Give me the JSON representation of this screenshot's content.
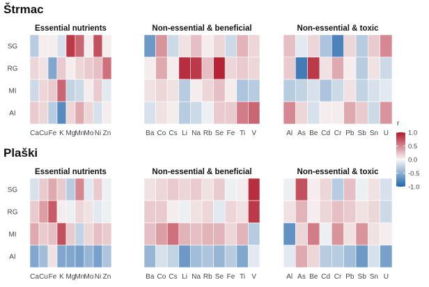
{
  "colors": {
    "neg": "#2166ac",
    "mid": "#f7f7f7",
    "pos": "#b2182b"
  },
  "legend": {
    "title": "r",
    "ticks": [
      "1.0",
      "0.5",
      "0.0",
      "-0.5",
      "-1.0"
    ],
    "tick_values": [
      1.0,
      0.5,
      0.0,
      -0.5,
      -1.0
    ]
  },
  "chart_data": [
    {
      "type": "heatmap",
      "site": "Štrmac",
      "panels": [
        {
          "title": "Essential nutrients",
          "x": [
            "Ca",
            "Cu",
            "Fe",
            "K",
            "Mg",
            "Mn",
            "Mo",
            "Ni",
            "Zn"
          ],
          "y": [
            "SG",
            "RG",
            "MI",
            "AI"
          ],
          "values": [
            [
              -0.3,
              0.05,
              0.05,
              -0.15,
              0.85,
              0.65,
              0.05,
              0.75,
              0.05
            ],
            [
              0.15,
              0.1,
              -0.55,
              0.2,
              0.05,
              0.15,
              0.2,
              0.25,
              0.6
            ],
            [
              -0.2,
              0.15,
              0.2,
              0.65,
              -0.25,
              -0.2,
              0.05,
              0.2,
              -0.1
            ],
            [
              0.2,
              0.15,
              -0.3,
              -0.75,
              0.15,
              0.35,
              0.15,
              -0.15,
              0.05
            ]
          ]
        },
        {
          "title": "Non-essential & beneficial",
          "x": [
            "Ba",
            "Co",
            "Cs",
            "Li",
            "Na",
            "Rb",
            "Se",
            "Fe",
            "Ti",
            "V"
          ],
          "y": [
            "SG",
            "RG",
            "MI",
            "AI"
          ],
          "values": [
            [
              -0.65,
              0.45,
              -0.2,
              0.1,
              0.25,
              0.05,
              0.15,
              -0.2,
              0.3,
              0.15
            ],
            [
              0.05,
              0.35,
              0.05,
              0.9,
              0.85,
              0.25,
              0.95,
              0.15,
              0.2,
              0.15
            ],
            [
              0.1,
              0.15,
              0.1,
              -0.3,
              0.05,
              0.15,
              0.25,
              0.05,
              -0.35,
              -0.3
            ],
            [
              -0.15,
              0.1,
              0.05,
              -0.3,
              -0.2,
              -0.05,
              0.2,
              0.2,
              0.55,
              0.65
            ]
          ]
        },
        {
          "title": "Non-essential & toxic",
          "x": [
            "Al",
            "As",
            "Be",
            "Cd",
            "Cr",
            "Pb",
            "Sb",
            "Sn",
            "U"
          ],
          "y": [
            "SG",
            "RG",
            "MI",
            "AI"
          ],
          "values": [
            [
              0.25,
              -0.1,
              0.15,
              -0.35,
              -0.8,
              0.15,
              -0.3,
              0.2,
              0.5
            ],
            [
              0.2,
              -0.85,
              0.85,
              0.1,
              0.35,
              0.05,
              -0.3,
              0.1,
              -0.2
            ],
            [
              -0.3,
              -0.25,
              -0.15,
              -0.35,
              -0.2,
              0.1,
              -0.25,
              -0.15,
              -0.1
            ],
            [
              0.5,
              0.15,
              -0.15,
              0.05,
              0.05,
              0.35,
              0.2,
              -0.2,
              0.45
            ]
          ]
        }
      ]
    },
    {
      "type": "heatmap",
      "site": "Plaški",
      "panels": [
        {
          "title": "Essential nutrients",
          "x": [
            "Ca",
            "Cu",
            "Fe",
            "K",
            "Mg",
            "Mn",
            "Mo",
            "Ni",
            "Zn"
          ],
          "y": [
            "SG",
            "RG",
            "MI",
            "AI"
          ],
          "values": [
            [
              -0.15,
              0.2,
              0.35,
              0.2,
              -0.3,
              0.5,
              -0.1,
              0.2,
              -0.05
            ],
            [
              0.2,
              0.4,
              0.7,
              0.05,
              -0.05,
              0.15,
              0.1,
              -0.1,
              -0.05
            ],
            [
              0.35,
              0.2,
              0.25,
              0.75,
              0.2,
              -0.25,
              0.15,
              0.25,
              0.2
            ],
            [
              -0.55,
              -0.4,
              0.1,
              -0.55,
              -0.55,
              -0.6,
              -0.45,
              -0.6,
              -0.35
            ]
          ]
        },
        {
          "title": "Non-essential & beneficial",
          "x": [
            "Ba",
            "Co",
            "Cs",
            "Li",
            "Na",
            "Rb",
            "Se",
            "Fe",
            "Ti",
            "V"
          ],
          "y": [
            "SG",
            "RG",
            "MI",
            "AI"
          ],
          "values": [
            [
              0.1,
              0.15,
              0.2,
              0.15,
              0.2,
              0.1,
              0.2,
              -0.05,
              0.05,
              0.9
            ],
            [
              0.2,
              0.2,
              0.05,
              -0.05,
              0.1,
              0.15,
              -0.1,
              0.15,
              0.1,
              0.85
            ],
            [
              0.25,
              0.4,
              0.6,
              0.3,
              0.25,
              0.3,
              0.3,
              0.15,
              0.3,
              -0.3
            ],
            [
              -0.45,
              -0.15,
              -0.25,
              -0.65,
              -0.4,
              -0.35,
              -0.45,
              -0.3,
              -0.55,
              -0.1
            ]
          ]
        },
        {
          "title": "Non-essential & toxic",
          "x": [
            "Al",
            "As",
            "Be",
            "Cd",
            "Cr",
            "Pb",
            "Sb",
            "Sn",
            "U"
          ],
          "y": [
            "SG",
            "RG",
            "MI",
            "AI"
          ],
          "values": [
            [
              -0.05,
              0.75,
              0.05,
              0.15,
              -0.3,
              0.25,
              -0.05,
              0.1,
              -0.15
            ],
            [
              0.1,
              0.3,
              0.05,
              0.15,
              0.25,
              0.2,
              0.1,
              0.15,
              -0.2
            ],
            [
              -0.7,
              0.15,
              0.55,
              -0.05,
              0.45,
              0.1,
              0.45,
              0.1,
              0.05
            ],
            [
              -0.1,
              0.35,
              0.15,
              -0.3,
              -0.3,
              -0.4,
              -0.65,
              -0.15,
              -0.6
            ]
          ]
        }
      ]
    }
  ]
}
